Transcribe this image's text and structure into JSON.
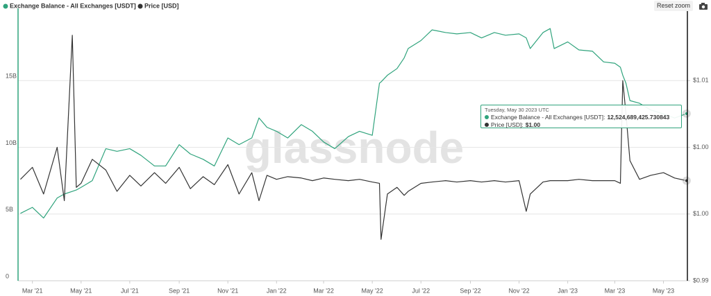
{
  "chart_data": {
    "type": "line",
    "watermark": "glassnode",
    "reset_zoom": "Reset zoom",
    "x": [
      "2021-02-14",
      "2021-03-01",
      "2021-03-15",
      "2021-04-01",
      "2021-04-10",
      "2021-04-20",
      "2021-04-25",
      "2021-05-01",
      "2021-05-15",
      "2021-06-01",
      "2021-06-15",
      "2021-07-01",
      "2021-07-15",
      "2021-08-01",
      "2021-08-15",
      "2021-09-01",
      "2021-09-15",
      "2021-10-01",
      "2021-10-15",
      "2021-11-01",
      "2021-11-15",
      "2021-12-01",
      "2021-12-10",
      "2021-12-20",
      "2022-01-01",
      "2022-01-15",
      "2022-02-01",
      "2022-02-15",
      "2022-03-01",
      "2022-03-15",
      "2022-04-01",
      "2022-04-15",
      "2022-05-01",
      "2022-05-10",
      "2022-05-12",
      "2022-05-20",
      "2022-06-01",
      "2022-06-10",
      "2022-06-15",
      "2022-07-01",
      "2022-07-15",
      "2022-08-01",
      "2022-08-15",
      "2022-09-01",
      "2022-09-15",
      "2022-10-01",
      "2022-10-15",
      "2022-11-01",
      "2022-11-10",
      "2022-11-15",
      "2022-12-01",
      "2022-12-10",
      "2022-12-15",
      "2023-01-01",
      "2023-01-15",
      "2023-02-01",
      "2023-02-15",
      "2023-03-01",
      "2023-03-08",
      "2023-03-11",
      "2023-03-15",
      "2023-03-20",
      "2023-04-01",
      "2023-04-15",
      "2023-05-01",
      "2023-05-15",
      "2023-05-30"
    ],
    "series": [
      {
        "name": "Exchange Balance - All Exchanges [USDT]",
        "color": "#2fa37c",
        "axis": "y",
        "values": [
          5050000000.0,
          5500000000.0,
          4700000000.0,
          6200000000.0,
          6500000000.0,
          6700000000.0,
          6800000000.0,
          7000000000.0,
          7500000000.0,
          9900000000.0,
          9700000000.0,
          9900000000.0,
          9400000000.0,
          8600000000.0,
          8600000000.0,
          10200000000.0,
          9500000000.0,
          9100000000.0,
          8600000000.0,
          10700000000.0,
          10200000000.0,
          10700000000.0,
          12200000000.0,
          11500000000.0,
          11200000000.0,
          10700000000.0,
          11700000000.0,
          11200000000.0,
          10400000000.0,
          9900000000.0,
          10800000000.0,
          11200000000.0,
          10900000000.0,
          14800000000.0,
          14900000000.0,
          15400000000.0,
          15900000000.0,
          16700000000.0,
          17400000000.0,
          18000000000.0,
          18800000000.0,
          18600000000.0,
          18500000000.0,
          18600000000.0,
          18200000000.0,
          18600000000.0,
          18400000000.0,
          18500000000.0,
          18200000000.0,
          17400000000.0,
          18600000000.0,
          18900000000.0,
          17400000000.0,
          17900000000.0,
          17300000000.0,
          17200000000.0,
          16400000000.0,
          16300000000.0,
          16000000000.0,
          15400000000.0,
          14800000000.0,
          13500000000.0,
          13300000000.0,
          12800000000.0,
          12500000000.0,
          12200000000.0,
          12524689425.730843
        ]
      },
      {
        "name": "Price [USD]",
        "color": "#333333",
        "axis": "y2",
        "values": [
          1.0001,
          1.001,
          0.999,
          1.0025,
          0.9985,
          1.0109,
          0.9995,
          0.9998,
          1.0016,
          1.0008,
          0.9992,
          1.0004,
          0.9996,
          1.0006,
          0.9998,
          1.001,
          0.9994,
          1.0003,
          0.9997,
          1.0012,
          0.999,
          1.0006,
          0.9985,
          1.0004,
          1.0001,
          1.0003,
          1.0002,
          1.0,
          1.0002,
          1.0001,
          1.0,
          1.0001,
          0.9999,
          0.9998,
          0.9956,
          0.999,
          0.9995,
          0.9989,
          0.9992,
          0.9998,
          0.9999,
          1.0,
          0.9999,
          1.0,
          0.9999,
          1.0,
          0.9999,
          1.0,
          0.9977,
          0.999,
          0.9999,
          1.0,
          1.0,
          1.0,
          1.0001,
          1.0,
          1.0,
          1.0,
          0.9998,
          1.0075,
          1.005,
          1.0015,
          1.0001,
          1.0004,
          1.0006,
          1.0002,
          1.0
        ]
      }
    ],
    "xlim": [
      "2021-02-11",
      "2023-05-31"
    ],
    "xticks": [
      {
        "value": "2021-03-01",
        "label": "Mar '21"
      },
      {
        "value": "2021-05-01",
        "label": "May '21"
      },
      {
        "value": "2021-07-01",
        "label": "Jul '21"
      },
      {
        "value": "2021-09-01",
        "label": "Sep '21"
      },
      {
        "value": "2021-11-01",
        "label": "Nov '21"
      },
      {
        "value": "2022-01-01",
        "label": "Jan '22"
      },
      {
        "value": "2022-03-01",
        "label": "Mar '22"
      },
      {
        "value": "2022-05-01",
        "label": "May '22"
      },
      {
        "value": "2022-07-01",
        "label": "Jul '22"
      },
      {
        "value": "2022-09-01",
        "label": "Sep '22"
      },
      {
        "value": "2022-11-01",
        "label": "Nov '22"
      },
      {
        "value": "2023-01-01",
        "label": "Jan '23"
      },
      {
        "value": "2023-03-01",
        "label": "Mar '23"
      },
      {
        "value": "2023-05-01",
        "label": "May '23"
      }
    ],
    "ylim": [
      0,
      20000000000.0
    ],
    "yticks": [
      0,
      {
        "value": 5000000000.0,
        "label": "5B"
      },
      {
        "value": 10000000000.0,
        "label": "10B"
      },
      {
        "value": 15000000000.0,
        "label": "15B"
      }
    ],
    "y2lim": [
      0.9925,
      1.0125
    ],
    "y2ticks": [
      {
        "value": 0.9925,
        "label": "$0.99"
      },
      {
        "value": 0.9975,
        "label": "$1.00"
      },
      {
        "value": 1.0025,
        "label": "$1.00"
      },
      {
        "value": 1.0075,
        "label": "$1.01"
      }
    ],
    "grid": true,
    "legend": "top-left",
    "tooltip": {
      "title": "Tuesday, May 30 2023 UTC",
      "value_labels": [
        "12,524,689,425.730843",
        "$1.00"
      ]
    }
  }
}
